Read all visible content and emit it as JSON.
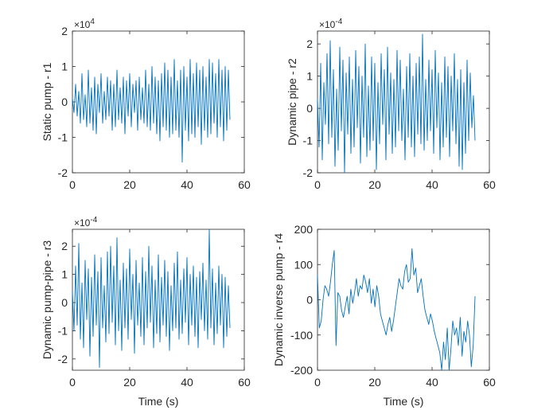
{
  "chart_data": [
    {
      "type": "line",
      "ylabel": "Static pump - r1",
      "xlabel": "",
      "xlim": [
        0,
        60
      ],
      "ylim": [
        -2,
        2
      ],
      "xticks": [
        "0",
        "20",
        "40",
        "60"
      ],
      "yticks": [
        "-2",
        "-1",
        "0",
        "1",
        "2"
      ],
      "exponent_label": "×10",
      "exponent_power": "4",
      "series": [
        {
          "x_range": [
            0,
            55
          ],
          "color": "#0072BD",
          "values": [
            0.1,
            -0.3,
            0.5,
            -0.4,
            0.3,
            -0.6,
            0.8,
            -0.5,
            0.2,
            -0.7,
            0.9,
            -0.6,
            0.4,
            -0.8,
            0.7,
            -0.9,
            0.5,
            -0.3,
            0.8,
            -0.6,
            0.3,
            -0.5,
            0.7,
            -0.4,
            0.6,
            -0.8,
            0.5,
            -0.7,
            0.9,
            -0.5,
            0.4,
            -0.6,
            0.7,
            -0.9,
            0.6,
            -0.4,
            0.8,
            -0.7,
            0.5,
            -0.3,
            0.6,
            -0.8,
            0.7,
            -0.5,
            0.4,
            -0.6,
            0.9,
            -0.7,
            0.5,
            -0.8,
            1.0,
            -0.6,
            0.7,
            -0.9,
            0.6,
            -1.1,
            0.8,
            -0.7,
            1.1,
            -0.8,
            0.9,
            -1.0,
            0.7,
            -0.9,
            1.2,
            -0.8,
            0.6,
            -1.0,
            0.9,
            -1.7,
            1.0,
            -0.8,
            0.7,
            -1.1,
            1.2,
            -0.9,
            0.8,
            -1.0,
            1.1,
            -0.7,
            0.9,
            -1.2,
            1.0,
            -0.8,
            0.7,
            -1.0,
            1.2,
            -0.9,
            1.1,
            -0.6,
            0.8,
            -1.0,
            1.2,
            -0.7,
            0.9,
            -1.1,
            1.0,
            -0.8,
            0.9,
            -0.5
          ]
        }
      ]
    },
    {
      "type": "line",
      "ylabel": "Dynamic pipe - r2",
      "xlabel": "",
      "xlim": [
        0,
        60
      ],
      "ylim": [
        -2,
        2.4
      ],
      "xticks": [
        "0",
        "20",
        "40",
        "60"
      ],
      "yticks": [
        "-2",
        "-1",
        "0",
        "1",
        "2"
      ],
      "exponent_label": "×10",
      "exponent_power": "-4",
      "series": [
        {
          "x_range": [
            0,
            55
          ],
          "color": "#0072BD",
          "values": [
            0.3,
            -1.2,
            1.4,
            -1.6,
            0.8,
            -0.5,
            1.7,
            -1.1,
            2.1,
            -0.9,
            1.2,
            -1.8,
            0.6,
            -1.3,
            1.9,
            -0.7,
            1.5,
            -2.0,
            1.1,
            -0.8,
            1.6,
            -1.4,
            0.9,
            -1.2,
            1.8,
            -0.6,
            1.3,
            -1.7,
            1.0,
            -0.9,
            2.0,
            -1.5,
            0.7,
            -1.3,
            1.6,
            -1.0,
            1.4,
            -1.9,
            0.8,
            -1.1,
            1.7,
            -0.5,
            1.2,
            -1.6,
            1.9,
            -0.8,
            1.1,
            -1.4,
            0.9,
            -1.2,
            1.8,
            -0.7,
            1.5,
            -1.0,
            0.6,
            -1.6,
            1.3,
            -0.9,
            1.7,
            -1.2,
            1.0,
            -1.5,
            1.4,
            -0.8,
            1.6,
            -1.1,
            2.3,
            -1.3,
            0.9,
            -1.0,
            1.5,
            -0.7,
            1.2,
            -1.4,
            1.8,
            -0.6,
            1.1,
            -1.6,
            0.8,
            -1.2,
            1.6,
            -0.9,
            1.3,
            -1.5,
            1.0,
            -0.7,
            1.7,
            -1.1,
            0.9,
            -1.8,
            1.2,
            -1.9,
            0.8,
            -1.4,
            1.5,
            -1.0,
            1.1,
            -0.6,
            0.4,
            -1.0
          ]
        }
      ]
    },
    {
      "type": "line",
      "ylabel": "Dynamic pump-pipe - r3",
      "xlabel": "Time (s)",
      "xlim": [
        0,
        60
      ],
      "ylim": [
        -2.4,
        2.6
      ],
      "xticks": [
        "0",
        "20",
        "40",
        "60"
      ],
      "yticks": [
        "-2",
        "-1",
        "0",
        "1",
        "2"
      ],
      "exponent_label": "×10",
      "exponent_power": "-4",
      "series": [
        {
          "x_range": [
            0,
            55
          ],
          "color": "#0072BD",
          "values": [
            0.4,
            -1.0,
            1.3,
            -0.8,
            2.1,
            -1.3,
            0.7,
            -1.6,
            1.5,
            -0.6,
            1.2,
            -1.9,
            0.9,
            -1.2,
            1.7,
            -0.8,
            1.1,
            -2.3,
            1.6,
            -0.9,
            0.6,
            -1.4,
            1.8,
            -1.1,
            2.0,
            -0.7,
            1.3,
            -1.5,
            2.3,
            -1.0,
            0.8,
            -1.7,
            1.4,
            -0.9,
            1.2,
            -1.3,
            1.9,
            -0.6,
            1.0,
            -1.8,
            1.5,
            -0.8,
            0.7,
            -1.2,
            1.6,
            -1.5,
            1.1,
            -0.9,
            2.0,
            -0.7,
            1.3,
            -1.6,
            0.8,
            -1.1,
            1.7,
            -1.4,
            0.9,
            -0.8,
            1.5,
            -1.2,
            1.1,
            -1.7,
            0.6,
            -1.0,
            1.4,
            -0.9,
            1.8,
            -1.3,
            0.8,
            -1.1,
            1.2,
            -0.7,
            1.6,
            -1.5,
            1.0,
            -0.8,
            1.3,
            -1.2,
            0.9,
            -1.6,
            1.1,
            -0.6,
            1.4,
            -1.0,
            0.8,
            -1.3,
            2.6,
            -0.9,
            1.2,
            -1.5,
            0.7,
            -1.1,
            1.3,
            -0.8,
            1.0,
            -1.6,
            0.9,
            -1.2,
            0.6,
            -0.9
          ]
        }
      ]
    },
    {
      "type": "line",
      "ylabel": "Dynamic inverse pump - r4",
      "xlabel": "Time (s)",
      "xlim": [
        0,
        60
      ],
      "ylim": [
        -200,
        200
      ],
      "xticks": [
        "0",
        "20",
        "40",
        "60"
      ],
      "yticks": [
        "-200",
        "-100",
        "0",
        "100",
        "200"
      ],
      "series": [
        {
          "x_range": [
            0,
            55
          ],
          "color": "#0072BD",
          "values": [
            70,
            -80,
            -60,
            0,
            40,
            30,
            10,
            50,
            100,
            140,
            -130,
            20,
            10,
            -30,
            -50,
            -20,
            10,
            -40,
            30,
            -10,
            20,
            60,
            10,
            40,
            30,
            70,
            50,
            20,
            60,
            -10,
            30,
            -20,
            40,
            10,
            -40,
            -60,
            -80,
            -100,
            -70,
            -50,
            -90,
            -60,
            -20,
            20,
            60,
            40,
            30,
            80,
            100,
            50,
            60,
            145,
            70,
            90,
            20,
            40,
            60,
            10,
            -30,
            -50,
            -70,
            -40,
            -60,
            -90,
            -110,
            -130,
            -150,
            -200,
            -120,
            -170,
            -80,
            -200,
            -140,
            -60,
            -100,
            -80,
            -130,
            -50,
            -160,
            -90,
            -120,
            -60,
            -100,
            -190,
            -130,
            10
          ]
        }
      ]
    }
  ]
}
